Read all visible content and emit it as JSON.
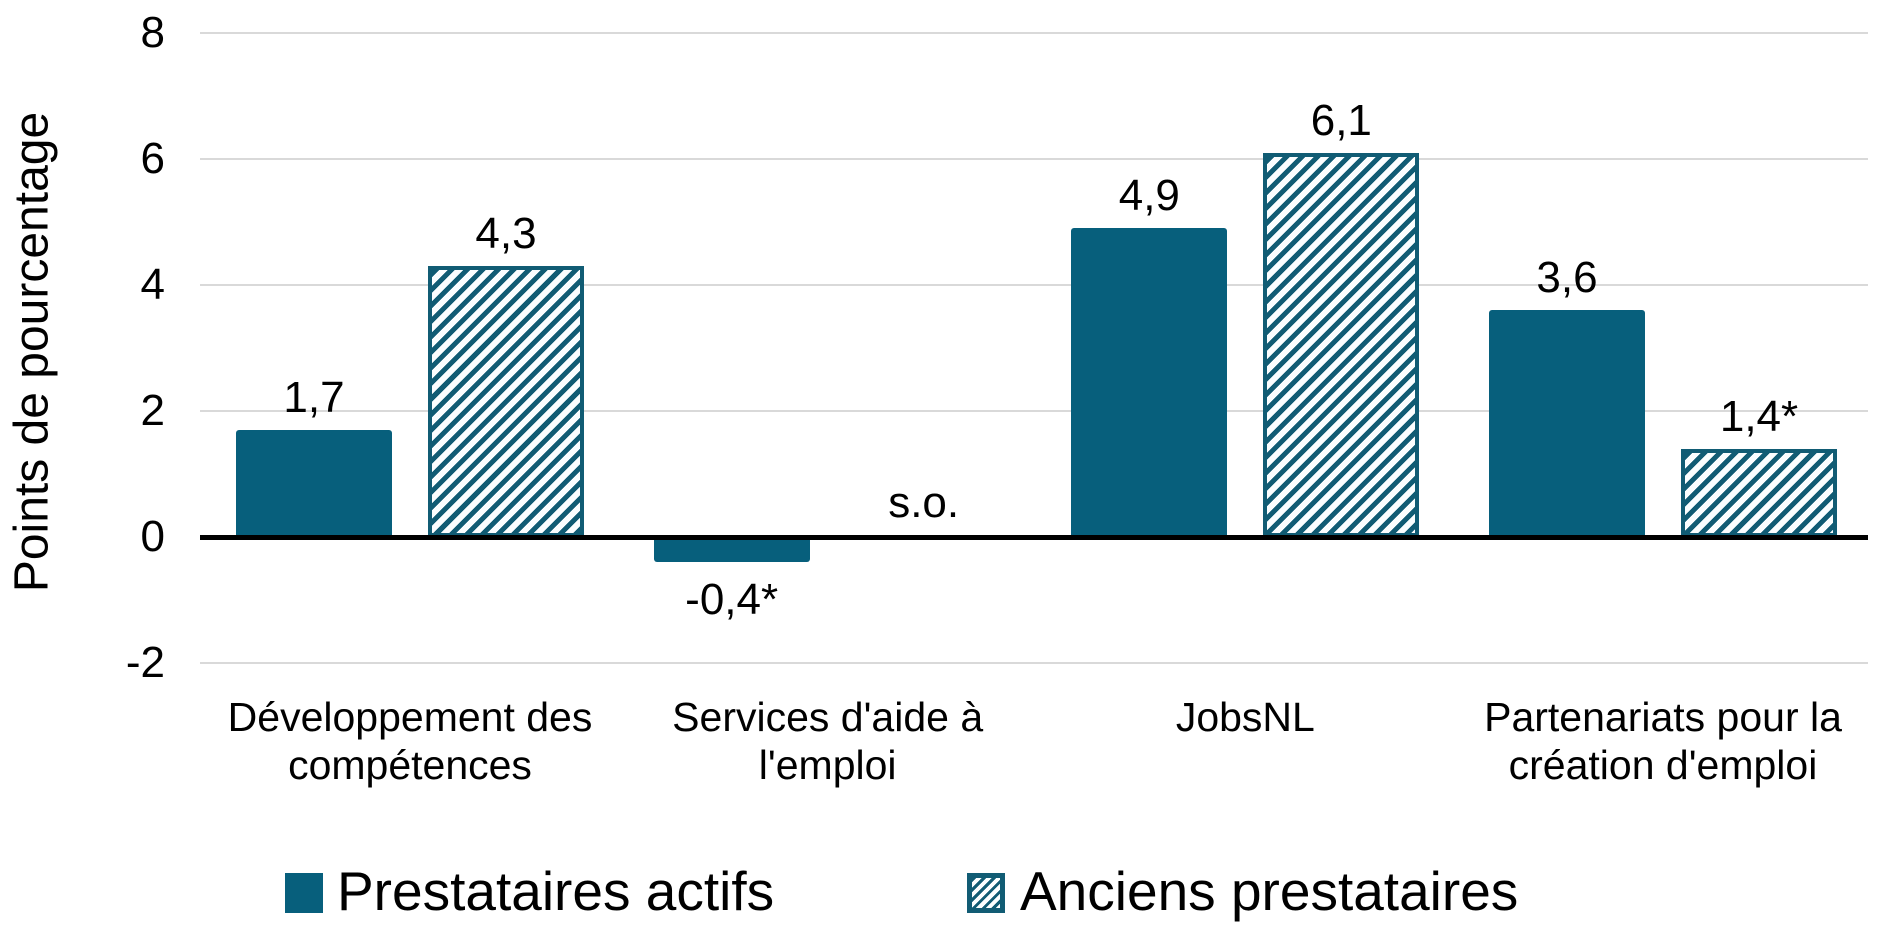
{
  "chart_data": {
    "type": "bar",
    "title": "",
    "ylabel": "Points de pourcentage",
    "xlabel": "",
    "ylim": [
      -2,
      8
    ],
    "y_ticks": [
      8,
      6,
      4,
      2,
      0,
      -2
    ],
    "grid": true,
    "legend_position": "bottom",
    "categories": [
      "Développement des compétences",
      "Services d'aide à l'emploi",
      "JobsNL",
      "Partenariats pour la création d'emploi"
    ],
    "category_lines": [
      [
        "Développement des",
        "compétences"
      ],
      [
        "Services d'aide à",
        "l'emploi"
      ],
      [
        "JobsNL"
      ],
      [
        "Partenariats pour la",
        "création d'emploi"
      ]
    ],
    "series": [
      {
        "name": "Prestataires actifs",
        "style": "solid",
        "values": [
          1.7,
          -0.4,
          4.9,
          3.6
        ],
        "labels": [
          "1,7",
          "-0,4*",
          "4,9",
          "3,6"
        ]
      },
      {
        "name": "Anciens prestataires",
        "style": "hatched",
        "values": [
          4.3,
          null,
          6.1,
          1.4
        ],
        "labels": [
          "4,3",
          "s.o.",
          "6,1",
          "1,4*"
        ]
      }
    ],
    "missing_value_label": "s.o."
  },
  "colors": {
    "bar_solid": "#075F7C",
    "bar_hatch": "#115C74",
    "hatch_background": "#FBFEFF",
    "gridline": "#D9D9D9",
    "axis_line": "#000000",
    "text": "#000000"
  }
}
